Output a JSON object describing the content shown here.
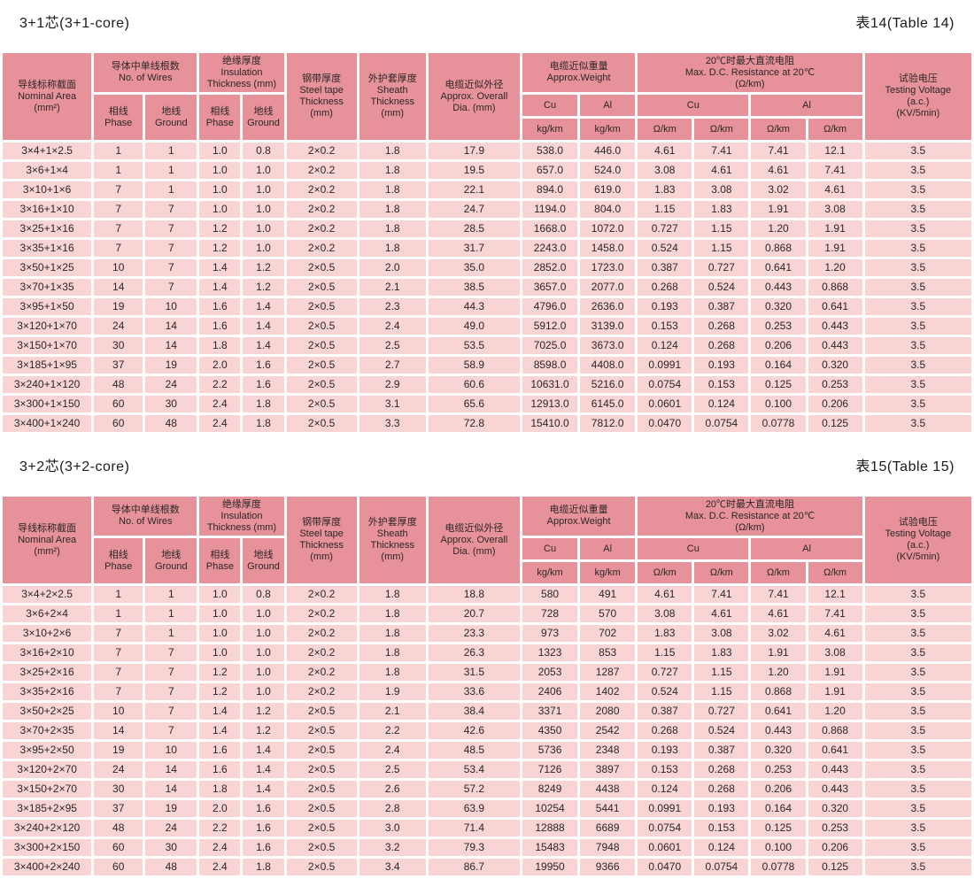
{
  "colors": {
    "header_bg": "#e7929a",
    "row_bg": "#f8d4d4",
    "text": "#2b2627",
    "title_text": "#1a1a1a",
    "page_bg": "#ffffff"
  },
  "header": {
    "nominal_area": "导线标称截面\nNominal Area\n(mm²)",
    "wires_group": "导体中单线根数\nNo. of Wires",
    "phase": "相线\nPhase",
    "ground": "地线\nGround",
    "insulation_group": "绝缘厚度\nInsulation\nThickness (mm)",
    "steel_tape": "钢带厚度\nSteel tape\nThickness\n(mm)",
    "sheath": "外护套厚度\nSheath\nThickness\n(mm)",
    "overall_dia": "电缆近似外径\nApprox. Overall\nDia. (mm)",
    "weight_group": "电缆近似重量\nApprox.Weight",
    "cu": "Cu",
    "al": "Al",
    "kg_km": "kg/km",
    "resistance_group": "20℃时最大直流电阻\nMax. D.C. Resistance at 20℃\n(Ω/km)",
    "ohm_km": "Ω/km",
    "testing_voltage": "试验电压\nTesting Voltage\n(a.c.)\n(KV/5min)"
  },
  "tables": [
    {
      "title": "3+1芯(3+1-core)",
      "label": "表14(Table 14)",
      "rows": [
        [
          "3×4+1×2.5",
          "1",
          "1",
          "1.0",
          "0.8",
          "2×0.2",
          "1.8",
          "17.9",
          "538.0",
          "446.0",
          "4.61",
          "7.41",
          "7.41",
          "12.1",
          "3.5"
        ],
        [
          "3×6+1×4",
          "1",
          "1",
          "1.0",
          "1.0",
          "2×0.2",
          "1.8",
          "19.5",
          "657.0",
          "524.0",
          "3.08",
          "4.61",
          "4.61",
          "7.41",
          "3.5"
        ],
        [
          "3×10+1×6",
          "7",
          "1",
          "1.0",
          "1.0",
          "2×0.2",
          "1.8",
          "22.1",
          "894.0",
          "619.0",
          "1.83",
          "3.08",
          "3.02",
          "4.61",
          "3.5"
        ],
        [
          "3×16+1×10",
          "7",
          "7",
          "1.0",
          "1.0",
          "2×0.2",
          "1.8",
          "24.7",
          "1194.0",
          "804.0",
          "1.15",
          "1.83",
          "1.91",
          "3.08",
          "3.5"
        ],
        [
          "3×25+1×16",
          "7",
          "7",
          "1.2",
          "1.0",
          "2×0.2",
          "1.8",
          "28.5",
          "1668.0",
          "1072.0",
          "0.727",
          "1.15",
          "1.20",
          "1.91",
          "3.5"
        ],
        [
          "3×35+1×16",
          "7",
          "7",
          "1.2",
          "1.0",
          "2×0.2",
          "1.8",
          "31.7",
          "2243.0",
          "1458.0",
          "0.524",
          "1.15",
          "0.868",
          "1.91",
          "3.5"
        ],
        [
          "3×50+1×25",
          "10",
          "7",
          "1.4",
          "1.2",
          "2×0.5",
          "2.0",
          "35.0",
          "2852.0",
          "1723.0",
          "0.387",
          "0.727",
          "0.641",
          "1.20",
          "3.5"
        ],
        [
          "3×70+1×35",
          "14",
          "7",
          "1.4",
          "1.2",
          "2×0.5",
          "2.1",
          "38.5",
          "3657.0",
          "2077.0",
          "0.268",
          "0.524",
          "0.443",
          "0.868",
          "3.5"
        ],
        [
          "3×95+1×50",
          "19",
          "10",
          "1.6",
          "1.4",
          "2×0.5",
          "2.3",
          "44.3",
          "4796.0",
          "2636.0",
          "0.193",
          "0.387",
          "0.320",
          "0.641",
          "3.5"
        ],
        [
          "3×120+1×70",
          "24",
          "14",
          "1.6",
          "1.4",
          "2×0.5",
          "2.4",
          "49.0",
          "5912.0",
          "3139.0",
          "0.153",
          "0.268",
          "0.253",
          "0.443",
          "3.5"
        ],
        [
          "3×150+1×70",
          "30",
          "14",
          "1.8",
          "1.4",
          "2×0.5",
          "2.5",
          "53.5",
          "7025.0",
          "3673.0",
          "0.124",
          "0.268",
          "0.206",
          "0.443",
          "3.5"
        ],
        [
          "3×185+1×95",
          "37",
          "19",
          "2.0",
          "1.6",
          "2×0.5",
          "2.7",
          "58.9",
          "8598.0",
          "4408.0",
          "0.0991",
          "0.193",
          "0.164",
          "0.320",
          "3.5"
        ],
        [
          "3×240+1×120",
          "48",
          "24",
          "2.2",
          "1.6",
          "2×0.5",
          "2.9",
          "60.6",
          "10631.0",
          "5216.0",
          "0.0754",
          "0.153",
          "0.125",
          "0.253",
          "3.5"
        ],
        [
          "3×300+1×150",
          "60",
          "30",
          "2.4",
          "1.8",
          "2×0.5",
          "3.1",
          "65.6",
          "12913.0",
          "6145.0",
          "0.0601",
          "0.124",
          "0.100",
          "0.206",
          "3.5"
        ],
        [
          "3×400+1×240",
          "60",
          "48",
          "2.4",
          "1.8",
          "2×0.5",
          "3.3",
          "72.8",
          "15410.0",
          "7812.0",
          "0.0470",
          "0.0754",
          "0.0778",
          "0.125",
          "3.5"
        ]
      ]
    },
    {
      "title": "3+2芯(3+2-core)",
      "label": "表15(Table 15)",
      "rows": [
        [
          "3×4+2×2.5",
          "1",
          "1",
          "1.0",
          "0.8",
          "2×0.2",
          "1.8",
          "18.8",
          "580",
          "491",
          "4.61",
          "7.41",
          "7.41",
          "12.1",
          "3.5"
        ],
        [
          "3×6+2×4",
          "1",
          "1",
          "1.0",
          "1.0",
          "2×0.2",
          "1.8",
          "20.7",
          "728",
          "570",
          "3.08",
          "4.61",
          "4.61",
          "7.41",
          "3.5"
        ],
        [
          "3×10+2×6",
          "7",
          "1",
          "1.0",
          "1.0",
          "2×0.2",
          "1.8",
          "23.3",
          "973",
          "702",
          "1.83",
          "3.08",
          "3.02",
          "4.61",
          "3.5"
        ],
        [
          "3×16+2×10",
          "7",
          "7",
          "1.0",
          "1.0",
          "2×0.2",
          "1.8",
          "26.3",
          "1323",
          "853",
          "1.15",
          "1.83",
          "1.91",
          "3.08",
          "3.5"
        ],
        [
          "3×25+2×16",
          "7",
          "7",
          "1.2",
          "1.0",
          "2×0.2",
          "1.8",
          "31.5",
          "2053",
          "1287",
          "0.727",
          "1.15",
          "1.20",
          "1.91",
          "3.5"
        ],
        [
          "3×35+2×16",
          "7",
          "7",
          "1.2",
          "1.0",
          "2×0.2",
          "1.9",
          "33.6",
          "2406",
          "1402",
          "0.524",
          "1.15",
          "0.868",
          "1.91",
          "3.5"
        ],
        [
          "3×50+2×25",
          "10",
          "7",
          "1.4",
          "1.2",
          "2×0.5",
          "2.1",
          "38.4",
          "3371",
          "2080",
          "0.387",
          "0.727",
          "0.641",
          "1.20",
          "3.5"
        ],
        [
          "3×70+2×35",
          "14",
          "7",
          "1.4",
          "1.2",
          "2×0.5",
          "2.2",
          "42.6",
          "4350",
          "2542",
          "0.268",
          "0.524",
          "0.443",
          "0.868",
          "3.5"
        ],
        [
          "3×95+2×50",
          "19",
          "10",
          "1.6",
          "1.4",
          "2×0.5",
          "2.4",
          "48.5",
          "5736",
          "2348",
          "0.193",
          "0.387",
          "0.320",
          "0.641",
          "3.5"
        ],
        [
          "3×120+2×70",
          "24",
          "14",
          "1.6",
          "1.4",
          "2×0.5",
          "2.5",
          "53.4",
          "7126",
          "3897",
          "0.153",
          "0.268",
          "0.253",
          "0.443",
          "3.5"
        ],
        [
          "3×150+2×70",
          "30",
          "14",
          "1.8",
          "1.4",
          "2×0.5",
          "2.6",
          "57.2",
          "8249",
          "4438",
          "0.124",
          "0.268",
          "0.206",
          "0.443",
          "3.5"
        ],
        [
          "3×185+2×95",
          "37",
          "19",
          "2.0",
          "1.6",
          "2×0.5",
          "2.8",
          "63.9",
          "10254",
          "5441",
          "0.0991",
          "0.193",
          "0.164",
          "0.320",
          "3.5"
        ],
        [
          "3×240+2×120",
          "48",
          "24",
          "2.2",
          "1.6",
          "2×0.5",
          "3.0",
          "71.4",
          "12888",
          "6689",
          "0.0754",
          "0.153",
          "0.125",
          "0.253",
          "3.5"
        ],
        [
          "3×300+2×150",
          "60",
          "30",
          "2.4",
          "1.6",
          "2×0.5",
          "3.2",
          "79.3",
          "15483",
          "7948",
          "0.0601",
          "0.124",
          "0.100",
          "0.206",
          "3.5"
        ],
        [
          "3×400+2×240",
          "60",
          "48",
          "2.4",
          "1.8",
          "2×0.5",
          "3.4",
          "86.7",
          "19950",
          "9366",
          "0.0470",
          "0.0754",
          "0.0778",
          "0.125",
          "3.5"
        ]
      ]
    }
  ]
}
